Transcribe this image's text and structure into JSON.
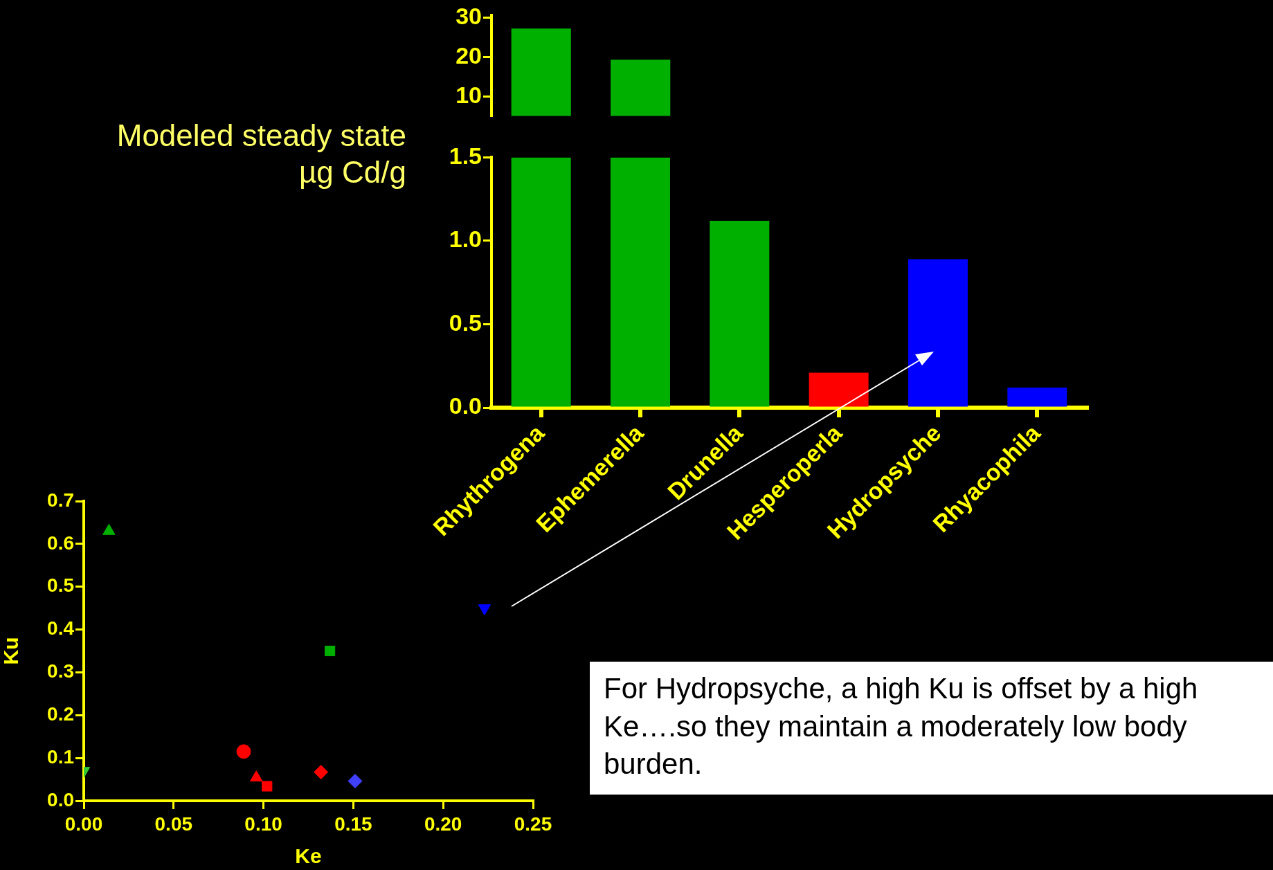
{
  "chart_data": [
    {
      "type": "bar",
      "categories": [
        null,
        null
      ],
      "values": [
        27.2,
        19.3
      ],
      "colors": [
        "#00b000",
        "#00b000"
      ],
      "ylim": [
        5,
        30.5
      ],
      "yticks": [
        10,
        20,
        30
      ],
      "tick_labels": "y"
    },
    {
      "type": "bar",
      "ylabel": "Modeled steady state\nµg Cd/g",
      "categories": [
        "Rhythrogena",
        "Ephemerella",
        "Drunella",
        "Hesperoperla",
        "Hydropsyche",
        "Rhyacophila"
      ],
      "values": [
        1.5,
        1.5,
        1.12,
        0.21,
        0.89,
        0.12
      ],
      "colors": [
        "#00b000",
        "#00b000",
        "#00b000",
        "#ff0000",
        "#0000ff",
        "#0000ff"
      ],
      "ylim": [
        0,
        1.5
      ],
      "yticks": [
        {
          "value": 0,
          "label": "0.0"
        },
        {
          "value": 0.5,
          "label": "0.5"
        },
        {
          "value": 1,
          "label": "1.0"
        },
        {
          "value": 1.5,
          "label": "1.5"
        }
      ]
    },
    {
      "type": "scatter",
      "xlabel": "Ke",
      "ylabel": "Ku",
      "xlim": [
        0,
        0.25
      ],
      "ylim": [
        0,
        0.7
      ],
      "xticks": [
        {
          "value": 0,
          "label": "0.00"
        },
        {
          "value": 0.05,
          "label": "0.05"
        },
        {
          "value": 0.1,
          "label": "0.10"
        },
        {
          "value": 0.15,
          "label": "0.15"
        },
        {
          "value": 0.2,
          "label": "0.20"
        },
        {
          "value": 0.25,
          "label": "0.25"
        }
      ],
      "yticks": [
        {
          "value": 0,
          "label": "0.0"
        },
        {
          "value": 0.1,
          "label": "0.1"
        },
        {
          "value": 0.2,
          "label": "0.2"
        },
        {
          "value": 0.3,
          "label": "0.3"
        },
        {
          "value": 0.4,
          "label": "0.4"
        },
        {
          "value": 0.5,
          "label": "0.5"
        },
        {
          "value": 0.6,
          "label": "0.6"
        },
        {
          "value": 0.7,
          "label": "0.7"
        }
      ],
      "series": [
        {
          "color": "#00b000",
          "marker": "triangle",
          "x": [
            0.014
          ],
          "values": [
            0.63
          ]
        },
        {
          "color": "#33cc33",
          "marker": "triangle-down",
          "x": [
            0
          ],
          "values": [
            0.07
          ]
        },
        {
          "color": "#ff0000",
          "marker": "circle",
          "x": [
            0.089
          ],
          "values": [
            0.115
          ]
        },
        {
          "color": "#ff0000",
          "marker": "triangle",
          "x": [
            0.096
          ],
          "values": [
            0.054
          ]
        },
        {
          "color": "#ff0000",
          "marker": "square",
          "x": [
            0.102
          ],
          "values": [
            0.034
          ]
        },
        {
          "color": "#ff0000",
          "marker": "diamond",
          "x": [
            0.132
          ],
          "values": [
            0.067
          ]
        },
        {
          "color": "#4040ff",
          "marker": "diamond",
          "x": [
            0.151
          ],
          "values": [
            0.046
          ]
        },
        {
          "color": "#00b000",
          "marker": "square",
          "x": [
            0.137
          ],
          "values": [
            0.35
          ]
        },
        {
          "color": "#0000ff",
          "marker": "triangle-down",
          "x": [
            0.223
          ],
          "values": [
            0.45
          ]
        }
      ],
      "annotations": [
        "For Hydropsyche, a high Ku is offset by a high Ke….so they maintain a moderately low body burden."
      ]
    }
  ]
}
